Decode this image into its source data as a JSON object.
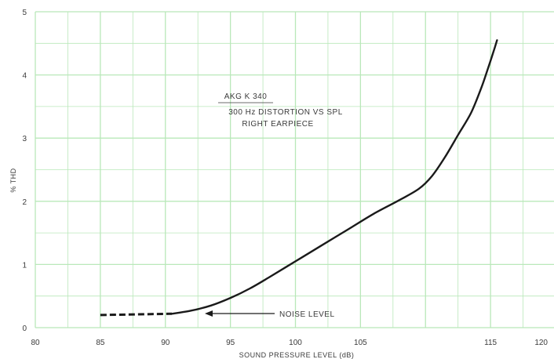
{
  "chart_data": {
    "type": "line",
    "title_lines": [
      "AKG K 340",
      "300 Hz DISTORTION VS SPL",
      "RIGHT EARPIECE"
    ],
    "xlabel": "SOUND PRESSURE LEVEL (dB)",
    "ylabel": "% THD",
    "xlim": [
      80,
      120
    ],
    "ylim": [
      0,
      5
    ],
    "x_ticks": [
      80,
      85,
      90,
      95,
      100,
      105,
      115,
      120
    ],
    "y_ticks": [
      0,
      1,
      2,
      3,
      4,
      5
    ],
    "grid": true,
    "annotations": [
      {
        "text": "NOISE LEVEL",
        "arrow_to": [
          92.5,
          0.2
        ]
      }
    ],
    "noise_level_segment": {
      "x": [
        85,
        90.5
      ],
      "y": [
        0.2,
        0.22
      ]
    },
    "series": [
      {
        "x": [
          90.5,
          92,
          93.5,
          95,
          96.5,
          98,
          100,
          102,
          104,
          106,
          108,
          109.5,
          110.5,
          111.5,
          112.5,
          113.5,
          114.3,
          114.8,
          115.2,
          115.5
        ],
        "y": [
          0.22,
          0.27,
          0.35,
          0.47,
          0.62,
          0.8,
          1.05,
          1.3,
          1.55,
          1.8,
          2.02,
          2.2,
          2.4,
          2.7,
          3.05,
          3.4,
          3.8,
          4.1,
          4.35,
          4.55
        ]
      }
    ],
    "colors": {
      "grid": "#b9e8b9",
      "curve": "#1a1a1a",
      "text": "#3a3a3a"
    }
  }
}
